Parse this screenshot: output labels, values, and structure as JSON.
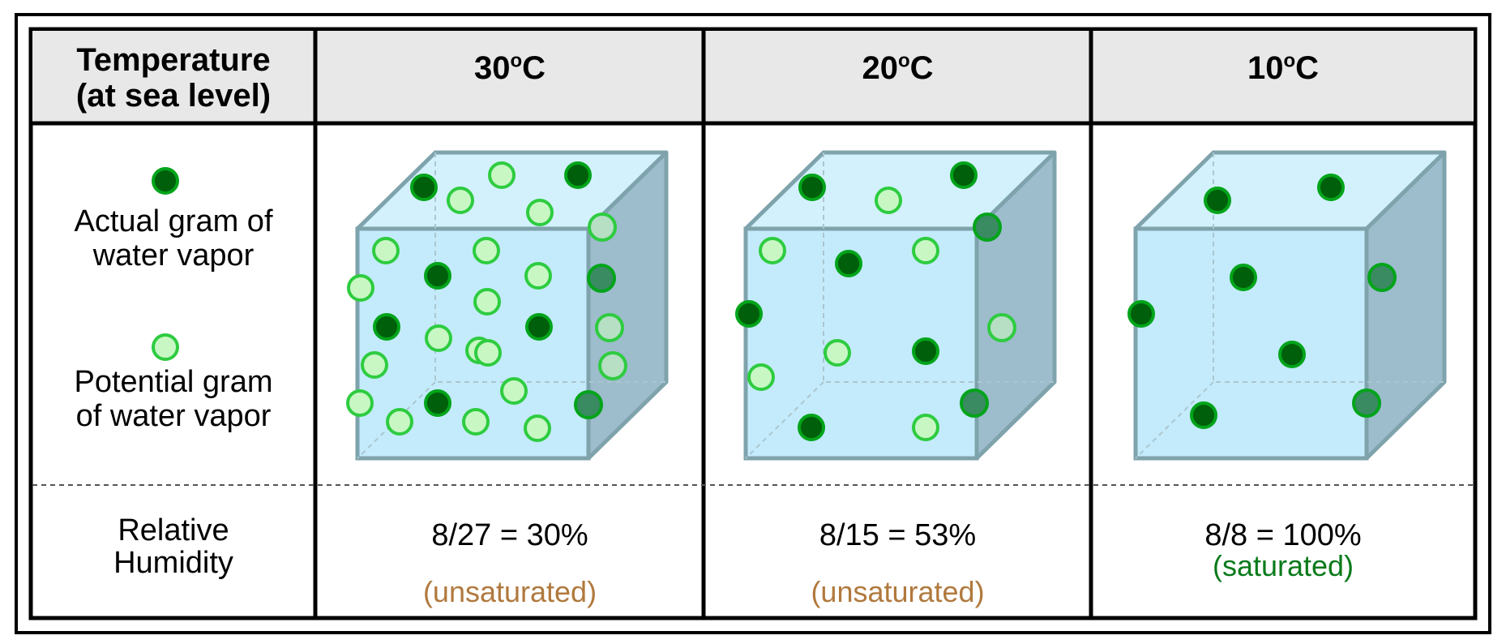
{
  "header": {
    "first_col_line1": "Temperature",
    "first_col_line2": "(at sea level)",
    "columns": [
      {
        "value": "30",
        "deg": "o",
        "unit": "C"
      },
      {
        "value": "20",
        "deg": "o",
        "unit": "C"
      },
      {
        "value": "10",
        "deg": "o",
        "unit": "C"
      }
    ]
  },
  "legend": {
    "actual": {
      "line1": "Actual gram of",
      "line2": "water vapor",
      "color": "#007a0c",
      "fill": "#005f0a"
    },
    "potential": {
      "line1": "Potential gram",
      "line2": "of water vapor",
      "color": "#2ecc40",
      "fill": "#c8f7c4"
    }
  },
  "row_label": {
    "line1": "Relative",
    "line2": "Humidity"
  },
  "cells": [
    {
      "ratio": "8/27 = 30%",
      "status": "(unsaturated)",
      "status_color": "#b0793d",
      "actual_count": 8,
      "potential_count": 27
    },
    {
      "ratio": "8/15 = 53%",
      "status": "(unsaturated)",
      "status_color": "#b0793d",
      "actual_count": 8,
      "potential_count": 15
    },
    {
      "ratio": "8/8 = 100%",
      "status": "(saturated)",
      "status_color": "#0a7a1a",
      "actual_count": 8,
      "potential_count": 8
    }
  ],
  "colors": {
    "header_bg": "#e8e8e8",
    "cube_front": "#c4ebfb",
    "cube_top": "#d3f1fd",
    "cube_side": "#9dbccc",
    "cube_edge": "#7fa3ac"
  }
}
